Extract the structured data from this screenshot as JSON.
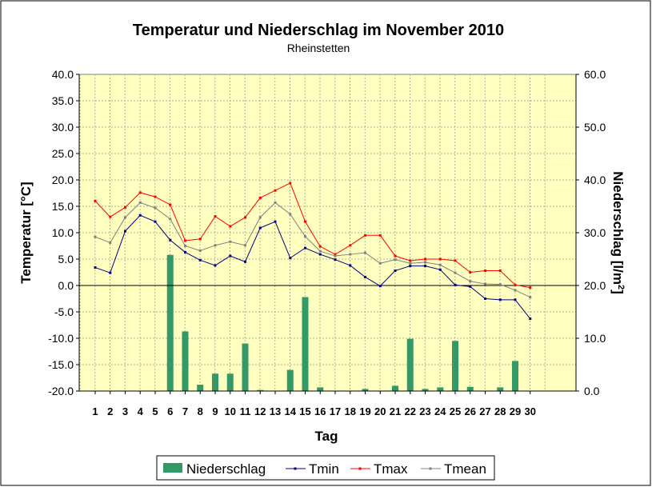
{
  "chart_data": {
    "type": "bar+line",
    "title": "Temperatur und Niederschlag im November 2010",
    "subtitle": "Rheinstetten",
    "xlabel": "Tag",
    "ylabel_left": "Temperatur [°C]",
    "ylabel_right_main": "Niederschlag [l/m",
    "ylabel_right_sup": "2",
    "ylabel_right_end": "]",
    "ylim_left": [
      -20,
      40
    ],
    "ylim_right": [
      0,
      60
    ],
    "yticks_left": [
      "40.0",
      "35.0",
      "30.0",
      "25.0",
      "20.0",
      "15.0",
      "10.0",
      "5.0",
      "0.0",
      "-5.0",
      "-10.0",
      "-15.0",
      "-20.0"
    ],
    "yticks_right": [
      "60.0",
      "50.0",
      "40.0",
      "30.0",
      "20.0",
      "10.0",
      "0.0"
    ],
    "grid": true,
    "legend_position": "bottom",
    "categories": [
      "1",
      "2",
      "3",
      "4",
      "5",
      "6",
      "7",
      "8",
      "9",
      "10",
      "11",
      "12",
      "13",
      "14",
      "15",
      "16",
      "17",
      "18",
      "19",
      "20",
      "21",
      "22",
      "23",
      "24",
      "25",
      "26",
      "27",
      "28",
      "29",
      "30"
    ],
    "series": [
      {
        "name": "Niederschlag",
        "type": "bar",
        "axis": "right",
        "color": "#339966",
        "values": [
          0,
          0,
          0,
          0,
          0,
          25.8,
          11.3,
          1.2,
          3.3,
          3.3,
          9.0,
          0.2,
          0,
          4.0,
          17.8,
          0.7,
          0,
          0,
          0.4,
          0,
          1.0,
          9.9,
          0.4,
          0.7,
          9.5,
          0.8,
          0,
          0.7,
          5.7,
          0
        ]
      },
      {
        "name": "Tmin",
        "type": "line",
        "axis": "left",
        "color": "#000080",
        "values": [
          3.4,
          2.4,
          10.3,
          13.3,
          12.1,
          8.6,
          6.3,
          4.8,
          3.8,
          5.6,
          4.5,
          10.9,
          12.1,
          5.2,
          7.1,
          5.9,
          4.9,
          3.8,
          1.6,
          -0.1,
          2.8,
          3.7,
          3.7,
          3.0,
          0.1,
          -0.2,
          -2.5,
          -2.7,
          -2.7,
          -6.3
        ]
      },
      {
        "name": "Tmax",
        "type": "line",
        "axis": "left",
        "color": "#FF0000",
        "values": [
          16.0,
          13.0,
          14.8,
          17.6,
          16.8,
          15.3,
          8.5,
          8.8,
          13.1,
          11.2,
          12.9,
          16.6,
          18.0,
          19.4,
          12.1,
          7.4,
          5.9,
          7.6,
          9.5,
          9.5,
          5.6,
          4.7,
          5.0,
          5.0,
          4.7,
          2.5,
          2.8,
          2.8,
          0.1,
          -0.4
        ]
      },
      {
        "name": "Tmean",
        "type": "line",
        "axis": "left",
        "color": "#808080",
        "values": [
          9.2,
          8.1,
          12.9,
          15.7,
          14.7,
          12.6,
          7.5,
          6.6,
          7.6,
          8.3,
          7.6,
          12.9,
          15.7,
          13.5,
          9.3,
          6.5,
          5.6,
          5.9,
          6.2,
          4.2,
          4.9,
          4.2,
          4.4,
          3.9,
          2.4,
          0.8,
          0.3,
          0.2,
          -0.9,
          -2.2
        ]
      }
    ]
  }
}
